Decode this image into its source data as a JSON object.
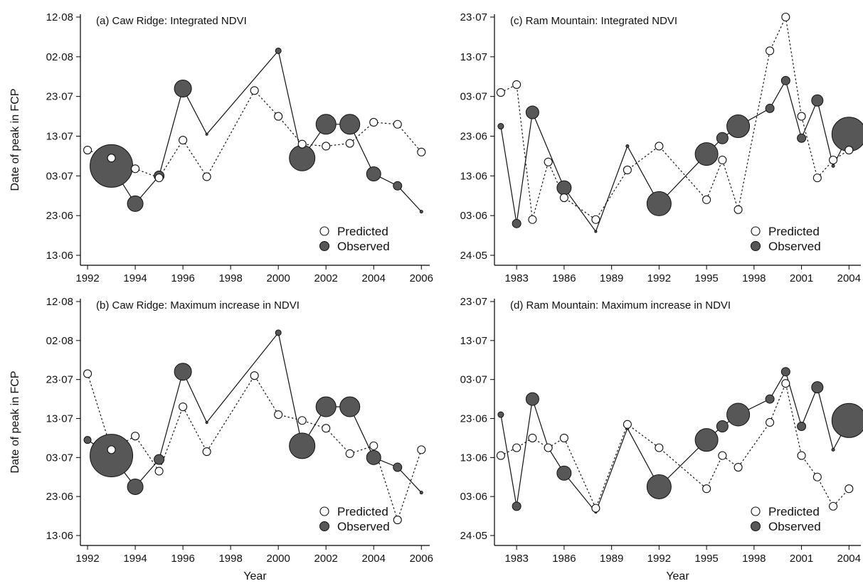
{
  "chart_data": [
    {
      "id": "a",
      "type": "scatter",
      "title": "(a) Caw Ridge: Integrated NDVI",
      "xlabel": "",
      "ylabel": "Date of peak in FCP",
      "x_ticks": [
        "1992",
        "1994",
        "1996",
        "1998",
        "2000",
        "2002",
        "2004",
        "2006"
      ],
      "x_tick_values": [
        1992,
        1994,
        1996,
        1998,
        2000,
        2002,
        2004,
        2006
      ],
      "xlim": [
        1991.7,
        2006.35
      ],
      "y_ticks": [
        "13·06",
        "23·06",
        "03·07",
        "13·07",
        "23·07",
        "02·08",
        "12·08"
      ],
      "ylim": [
        0,
        60
      ],
      "y_unit_note": "days after 13 June",
      "legend": {
        "position": "bottom-right",
        "entries": [
          "Predicted",
          "Observed"
        ]
      },
      "predicted": {
        "x": [
          1992,
          1993,
          1994,
          1995,
          1996,
          1997,
          1999,
          2000,
          2001,
          2002,
          2003,
          2004,
          2005,
          2006
        ],
        "y": [
          26.5,
          24.5,
          21.8,
          19.5,
          29,
          19.8,
          41.5,
          35,
          28,
          27.5,
          28.2,
          33.5,
          33,
          26
        ]
      },
      "observed": {
        "x": [
          1992,
          1993,
          1994,
          1995,
          1996,
          1997,
          1999,
          2000,
          2001,
          2002,
          2003,
          2004,
          2005,
          2006
        ],
        "y": [
          null,
          22.5,
          13,
          20,
          42,
          30.5,
          null,
          51.5,
          24.5,
          33,
          33,
          20.5,
          17.5,
          11
        ],
        "size": [
          null,
          30,
          11,
          7,
          12,
          1.5,
          null,
          4,
          18,
          14,
          14,
          10,
          6,
          2
        ]
      }
    },
    {
      "id": "b",
      "type": "scatter",
      "title": "(b) Caw Ridge: Maximum increase in NDVI",
      "xlabel": "Year",
      "ylabel": "Date of peak in FCP",
      "x_ticks": [
        "1992",
        "1994",
        "1996",
        "1998",
        "2000",
        "2002",
        "2004",
        "2006"
      ],
      "x_tick_values": [
        1992,
        1994,
        1996,
        1998,
        2000,
        2002,
        2004,
        2006
      ],
      "xlim": [
        1991.7,
        2006.35
      ],
      "y_ticks": [
        "13·06",
        "23·06",
        "03·07",
        "13·07",
        "23·07",
        "02·08",
        "12·08"
      ],
      "ylim": [
        0,
        60
      ],
      "y_unit_note": "days after 13 June",
      "legend": {
        "position": "bottom-right",
        "entries": [
          "Predicted",
          "Observed"
        ]
      },
      "predicted": {
        "x": [
          1992,
          1993,
          1994,
          1995,
          1996,
          1997,
          1999,
          2000,
          2001,
          2002,
          2003,
          2004,
          2005,
          2006
        ],
        "y": [
          41.5,
          22,
          25.5,
          16.5,
          33,
          21.5,
          41,
          31,
          29.5,
          27.5,
          21,
          23,
          4,
          22
        ]
      },
      "observed": {
        "x": [
          1992,
          1993,
          1994,
          1995,
          1996,
          1997,
          1999,
          2000,
          2001,
          2002,
          2003,
          2004,
          2005,
          2006
        ],
        "y": [
          24.5,
          20.5,
          12.5,
          19.5,
          42,
          29,
          null,
          52,
          23,
          33,
          33,
          20,
          17.5,
          11
        ],
        "size": [
          5,
          30,
          11,
          7,
          12,
          1.5,
          null,
          4,
          18,
          14,
          14,
          10,
          6,
          2
        ]
      }
    },
    {
      "id": "c",
      "type": "scatter",
      "title": "(c) Ram Mountain: Integrated NDVI",
      "xlabel": "",
      "ylabel": "",
      "x_ticks": [
        "1983",
        "1986",
        "1989",
        "1992",
        "1995",
        "1998",
        "2001",
        "2004"
      ],
      "x_tick_values": [
        1983,
        1986,
        1989,
        1992,
        1995,
        1998,
        2001,
        2004
      ],
      "xlim": [
        1981.6,
        2004.75
      ],
      "y_ticks": [
        "24·05",
        "03·06",
        "13·06",
        "23·06",
        "03·07",
        "13·07",
        "23·07"
      ],
      "ylim": [
        0,
        60
      ],
      "y_unit_note": "days after 24 May",
      "legend": {
        "position": "bottom-right",
        "entries": [
          "Predicted",
          "Observed"
        ]
      },
      "predicted": {
        "x": [
          1982,
          1983,
          1984,
          1985,
          1986,
          1988,
          1990,
          1992,
          1995,
          1996,
          1997,
          1999,
          2000,
          2001,
          2002,
          2003,
          2004
        ],
        "y": [
          41,
          43,
          9,
          23.5,
          14.5,
          9,
          21.5,
          27.5,
          14,
          24,
          11.5,
          51.5,
          60,
          35,
          19.5,
          24,
          26.5
        ]
      },
      "observed": {
        "x": [
          1982,
          1983,
          1984,
          1985,
          1986,
          1988,
          1990,
          1992,
          1995,
          1996,
          1997,
          1999,
          2000,
          2001,
          2002,
          2003,
          2004
        ],
        "y": [
          32.5,
          8,
          36,
          null,
          17,
          6,
          27.5,
          13,
          25.5,
          29.5,
          32.5,
          37,
          44,
          29.5,
          39,
          22.5,
          30.5
        ],
        "size": [
          4,
          6,
          9,
          null,
          10,
          1.5,
          2,
          17,
          16,
          8,
          16,
          6,
          6,
          6,
          8,
          2,
          24
        ]
      }
    },
    {
      "id": "d",
      "type": "scatter",
      "title": "(d) Ram Mountain: Maximum increase in NDVI",
      "xlabel": "Year",
      "ylabel": "",
      "x_ticks": [
        "1983",
        "1986",
        "1989",
        "1992",
        "1995",
        "1998",
        "2001",
        "2004"
      ],
      "x_tick_values": [
        1983,
        1986,
        1989,
        1992,
        1995,
        1998,
        2001,
        2004
      ],
      "xlim": [
        1981.6,
        2004.75
      ],
      "y_ticks": [
        "24·05",
        "03·06",
        "13·06",
        "23·06",
        "03·07",
        "13·07",
        "23·07"
      ],
      "ylim": [
        0,
        60
      ],
      "y_unit_note": "days after 24 May",
      "legend": {
        "position": "bottom-right",
        "entries": [
          "Predicted",
          "Observed"
        ]
      },
      "predicted": {
        "x": [
          1982,
          1983,
          1984,
          1985,
          1986,
          1988,
          1990,
          1992,
          1995,
          1996,
          1997,
          1999,
          2000,
          2001,
          2002,
          2003,
          2004
        ],
        "y": [
          20.5,
          22.5,
          25,
          22.5,
          25,
          7,
          28.5,
          22.5,
          12,
          20.5,
          17.5,
          29,
          39,
          20.5,
          15,
          7.5,
          12
        ]
      },
      "observed": {
        "x": [
          1982,
          1983,
          1984,
          1985,
          1986,
          1988,
          1990,
          1992,
          1995,
          1996,
          1997,
          1999,
          2000,
          2001,
          2002,
          2003,
          2004
        ],
        "y": [
          31,
          7.5,
          35,
          22.5,
          16,
          6,
          27.5,
          12.5,
          24.5,
          28,
          31,
          35,
          42,
          28,
          38,
          22,
          29.5
        ],
        "size": [
          4,
          6,
          9,
          1.5,
          10,
          1.5,
          2,
          17,
          16,
          8,
          16,
          6,
          6,
          6,
          8,
          2,
          24
        ]
      }
    }
  ]
}
